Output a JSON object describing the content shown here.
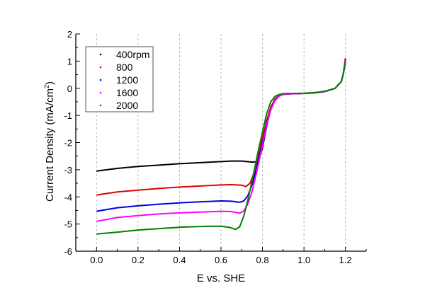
{
  "chart_data": {
    "type": "line",
    "title": "",
    "xlabel": "E vs. SHE",
    "ylabel_main": "Current Density (mA/cm",
    "ylabel_sup": "2",
    "ylabel_end": ")",
    "xlim": [
      -0.1,
      1.3
    ],
    "ylim": [
      -6,
      2
    ],
    "xticks": [
      0.0,
      0.2,
      0.4,
      0.6,
      0.8,
      1.0,
      1.2
    ],
    "xtick_labels": [
      "0.0",
      "0.2",
      "0.4",
      "0.6",
      "0.8",
      "1.0",
      "1.2"
    ],
    "yticks": [
      2,
      1,
      0,
      -1,
      -2,
      -3,
      -4,
      -5,
      -6
    ],
    "ytick_labels": [
      "2",
      "1",
      "0",
      "-1",
      "-2",
      "-3",
      "-4",
      "-5",
      "-6"
    ],
    "grid": "vertical dashed at x ticks",
    "legend_position": "top-left",
    "series": [
      {
        "name": "400rpm",
        "color": "#000000",
        "x": [
          0.0,
          0.1,
          0.2,
          0.3,
          0.4,
          0.5,
          0.6,
          0.65,
          0.7,
          0.75,
          0.78,
          0.8,
          0.82,
          0.84,
          0.86,
          0.88,
          0.9,
          0.95,
          1.0,
          1.05,
          1.1,
          1.15,
          1.18,
          1.19,
          1.2
        ],
        "y": [
          -3.05,
          -2.95,
          -2.88,
          -2.83,
          -2.78,
          -2.74,
          -2.7,
          -2.68,
          -2.68,
          -2.72,
          -2.7,
          -2.2,
          -1.4,
          -0.75,
          -0.4,
          -0.27,
          -0.22,
          -0.2,
          -0.19,
          -0.17,
          -0.12,
          0.0,
          0.25,
          0.55,
          1.1
        ]
      },
      {
        "name": "800",
        "color": "#e00000",
        "x": [
          0.0,
          0.1,
          0.2,
          0.3,
          0.4,
          0.5,
          0.6,
          0.65,
          0.7,
          0.72,
          0.74,
          0.76,
          0.78,
          0.8,
          0.82,
          0.84,
          0.86,
          0.88,
          0.9,
          0.95,
          1.0,
          1.05,
          1.1,
          1.15,
          1.18,
          1.19,
          1.2
        ],
        "y": [
          -3.93,
          -3.82,
          -3.75,
          -3.69,
          -3.64,
          -3.6,
          -3.56,
          -3.55,
          -3.57,
          -3.62,
          -3.5,
          -3.1,
          -2.5,
          -1.85,
          -1.2,
          -0.7,
          -0.4,
          -0.27,
          -0.22,
          -0.2,
          -0.19,
          -0.17,
          -0.12,
          0.0,
          0.25,
          0.55,
          1.05
        ]
      },
      {
        "name": "1200",
        "color": "#0000e0",
        "x": [
          0.0,
          0.1,
          0.2,
          0.3,
          0.4,
          0.5,
          0.6,
          0.65,
          0.69,
          0.71,
          0.73,
          0.75,
          0.77,
          0.8,
          0.82,
          0.84,
          0.86,
          0.88,
          0.9,
          0.95,
          1.0,
          1.05,
          1.1,
          1.15,
          1.18,
          1.19,
          1.2
        ],
        "y": [
          -4.53,
          -4.4,
          -4.33,
          -4.27,
          -4.22,
          -4.18,
          -4.15,
          -4.16,
          -4.2,
          -4.15,
          -3.95,
          -3.55,
          -3.0,
          -2.0,
          -1.3,
          -0.78,
          -0.45,
          -0.28,
          -0.22,
          -0.2,
          -0.19,
          -0.17,
          -0.12,
          0.0,
          0.25,
          0.55,
          1.0
        ]
      },
      {
        "name": "1600",
        "color": "#ff00ff",
        "x": [
          0.0,
          0.1,
          0.2,
          0.3,
          0.4,
          0.5,
          0.6,
          0.65,
          0.69,
          0.71,
          0.73,
          0.75,
          0.77,
          0.8,
          0.82,
          0.84,
          0.86,
          0.88,
          0.9,
          0.95,
          1.0,
          1.05,
          1.1,
          1.15,
          1.18,
          1.19,
          1.2
        ],
        "y": [
          -4.9,
          -4.76,
          -4.69,
          -4.63,
          -4.59,
          -4.56,
          -4.53,
          -4.54,
          -4.6,
          -4.52,
          -4.25,
          -3.8,
          -3.15,
          -2.1,
          -1.35,
          -0.8,
          -0.46,
          -0.29,
          -0.23,
          -0.2,
          -0.19,
          -0.17,
          -0.12,
          0.0,
          0.25,
          0.55,
          1.0
        ]
      },
      {
        "name": "2000",
        "color": "#008000",
        "x": [
          0.0,
          0.1,
          0.2,
          0.3,
          0.4,
          0.5,
          0.55,
          0.6,
          0.64,
          0.67,
          0.69,
          0.71,
          0.73,
          0.75,
          0.78,
          0.8,
          0.82,
          0.84,
          0.86,
          0.88,
          0.9,
          0.95,
          1.0,
          1.05,
          1.1,
          1.15,
          1.18,
          1.19,
          1.2
        ],
        "y": [
          -5.37,
          -5.3,
          -5.22,
          -5.17,
          -5.12,
          -5.09,
          -5.08,
          -5.08,
          -5.12,
          -5.2,
          -5.1,
          -4.7,
          -4.1,
          -3.4,
          -2.3,
          -1.6,
          -0.95,
          -0.5,
          -0.3,
          -0.23,
          -0.2,
          -0.19,
          -0.18,
          -0.16,
          -0.11,
          0.0,
          0.25,
          0.55,
          0.95
        ]
      }
    ]
  }
}
